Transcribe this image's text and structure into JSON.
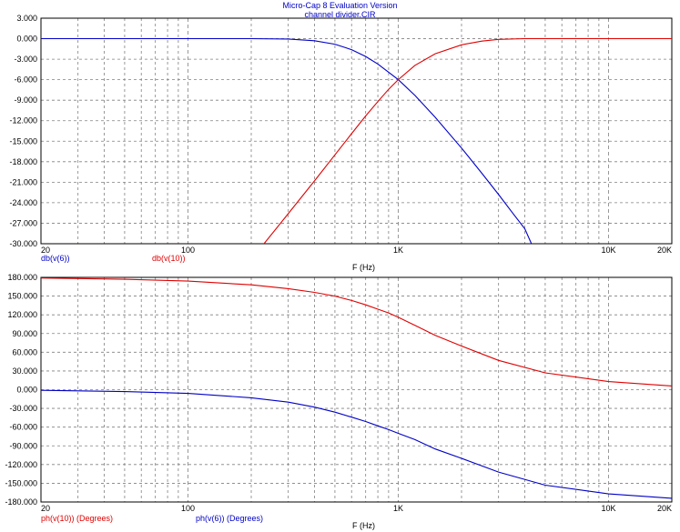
{
  "window": {
    "title": "Micro-Cap 8 Evaluation Version",
    "file": "channel divider.CIR"
  },
  "colors": {
    "red": "#e00000",
    "blue": "#0000c8",
    "frame": "#000000",
    "grid": "#808080"
  },
  "chart_data": [
    {
      "type": "line",
      "xscale": "log",
      "xlim": [
        20,
        20000
      ],
      "ylim": [
        -30,
        3
      ],
      "xlabel": "F (Hz)",
      "xticks": [
        {
          "v": 20,
          "label": "20"
        },
        {
          "v": 100,
          "label": "100"
        },
        {
          "v": 1000,
          "label": "1K"
        },
        {
          "v": 10000,
          "label": "10K"
        },
        {
          "v": 20000,
          "label": "20K"
        }
      ],
      "yticks": [
        3,
        0,
        -3,
        -6,
        -9,
        -12,
        -15,
        -18,
        -21,
        -24,
        -27,
        -30
      ],
      "ytick_labels": [
        "3.000",
        "0.000",
        "-3.000",
        "-6.000",
        "-9.000",
        "-12.000",
        "-15.000",
        "-18.000",
        "-21.000",
        "-24.000",
        "-27.000",
        "-30.000"
      ],
      "grid": true,
      "series": [
        {
          "name": "db(v(6))",
          "color": "#0000c8",
          "x": [
            20,
            50,
            100,
            200,
            300,
            400,
            500,
            600,
            700,
            800,
            900,
            1000,
            1200,
            1500,
            2000,
            2500,
            3000,
            3500,
            4000,
            4300
          ],
          "y": [
            0,
            0,
            0,
            0,
            -0.05,
            -0.3,
            -0.8,
            -1.6,
            -2.6,
            -3.7,
            -4.9,
            -6.0,
            -8.3,
            -11.5,
            -16.0,
            -19.7,
            -22.8,
            -25.5,
            -27.8,
            -30.0
          ]
        },
        {
          "name": "db(v(10))",
          "color": "#e00000",
          "x": [
            230,
            300,
            400,
            500,
            600,
            700,
            800,
            900,
            1000,
            1200,
            1500,
            2000,
            2500,
            3000,
            4000,
            6000,
            10000,
            20000
          ],
          "y": [
            -30,
            -25.6,
            -20.8,
            -17.0,
            -13.9,
            -11.3,
            -9.2,
            -7.4,
            -6.0,
            -3.9,
            -2.2,
            -0.9,
            -0.35,
            -0.1,
            0,
            0,
            0,
            0
          ]
        }
      ]
    },
    {
      "type": "line",
      "xscale": "log",
      "xlim": [
        20,
        20000
      ],
      "ylim": [
        -180,
        180
      ],
      "xlabel": "F (Hz)",
      "xticks": [
        {
          "v": 20,
          "label": "20"
        },
        {
          "v": 100,
          "label": "100"
        },
        {
          "v": 1000,
          "label": "1K"
        },
        {
          "v": 10000,
          "label": "10K"
        },
        {
          "v": 20000,
          "label": "20K"
        }
      ],
      "yticks": [
        180,
        150,
        120,
        90,
        60,
        30,
        0,
        -30,
        -60,
        -90,
        -120,
        -150,
        -180
      ],
      "ytick_labels": [
        "180.000",
        "150.000",
        "120.000",
        "90.000",
        "60.000",
        "30.000",
        "0.000",
        "-30.000",
        "-60.000",
        "-90.000",
        "-120.000",
        "-150.000",
        "-180.000"
      ],
      "grid": true,
      "series": [
        {
          "name": "ph(v(10)) (Degrees)",
          "color": "#e00000",
          "x": [
            20,
            50,
            100,
            200,
            300,
            400,
            500,
            600,
            700,
            800,
            900,
            1000,
            1200,
            1500,
            2000,
            3000,
            5000,
            10000,
            20000
          ],
          "y": [
            179,
            177,
            174,
            168,
            162,
            156,
            150,
            143,
            136,
            129,
            123,
            116,
            103,
            87,
            70,
            47,
            27,
            13,
            6
          ]
        },
        {
          "name": "ph(v(6)) (Degrees)",
          "color": "#0000c8",
          "x": [
            20,
            50,
            100,
            200,
            300,
            400,
            500,
            600,
            700,
            800,
            900,
            1000,
            1200,
            1500,
            2000,
            3000,
            5000,
            10000,
            20000
          ],
          "y": [
            -1,
            -3,
            -6,
            -13,
            -20,
            -28,
            -36,
            -44,
            -51,
            -58,
            -64,
            -70,
            -80,
            -95,
            -110,
            -132,
            -153,
            -167,
            -174
          ]
        }
      ]
    }
  ]
}
